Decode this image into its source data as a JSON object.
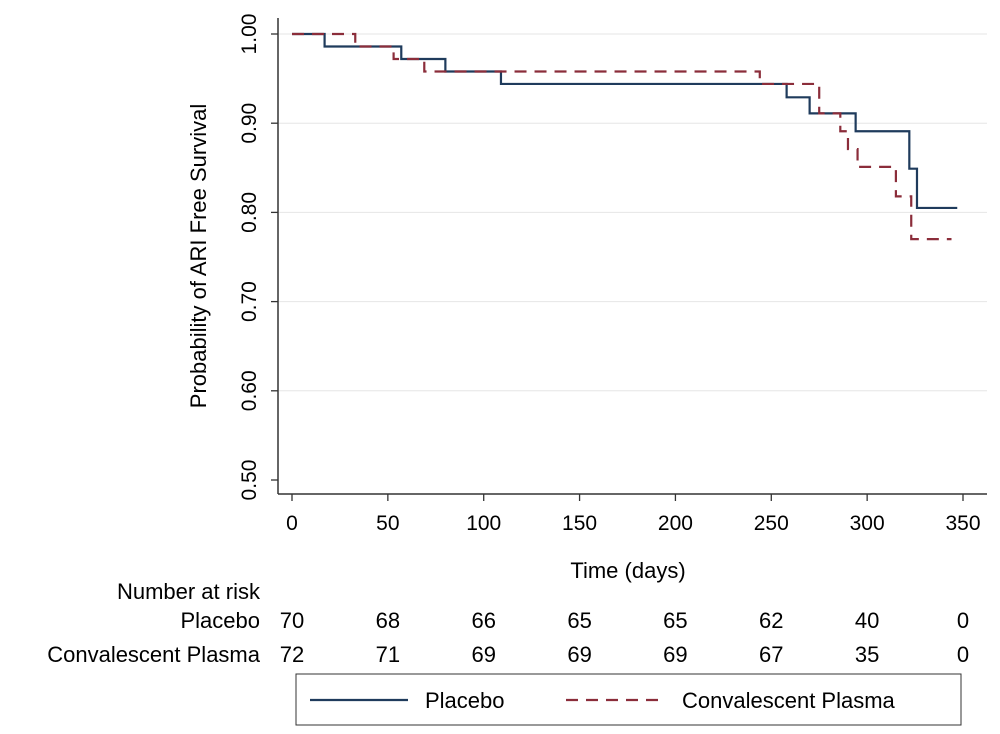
{
  "chart_data": {
    "type": "line",
    "title": "",
    "xlabel": "Time (days)",
    "ylabel": "Probability of ARI Free Survival",
    "xlim": [
      0,
      350
    ],
    "ylim": [
      0.5,
      1.0
    ],
    "x_ticks": [
      0,
      50,
      100,
      150,
      200,
      250,
      300,
      350
    ],
    "y_ticks": [
      0.5,
      0.6,
      0.7,
      0.8,
      0.9,
      1.0
    ],
    "y_tick_labels": [
      "0.50",
      "0.60",
      "0.70",
      "0.80",
      "0.90",
      "1.00"
    ],
    "grid": "horizontal",
    "legend_position": "bottom",
    "series": [
      {
        "name": "Placebo",
        "color": "#1f3b5c",
        "style": "solid",
        "step_points": [
          [
            0,
            1.0
          ],
          [
            17,
            0.986
          ],
          [
            57,
            0.972
          ],
          [
            80,
            0.958
          ],
          [
            109,
            0.944
          ],
          [
            258,
            0.929
          ],
          [
            270,
            0.911
          ],
          [
            294,
            0.891
          ],
          [
            322,
            0.849
          ],
          [
            326,
            0.805
          ],
          [
            347,
            0.805
          ]
        ]
      },
      {
        "name": "Convalescent Plasma",
        "color": "#8b2d3a",
        "style": "dashed",
        "step_points": [
          [
            0,
            1.0
          ],
          [
            33,
            0.986
          ],
          [
            53,
            0.972
          ],
          [
            69,
            0.958
          ],
          [
            244,
            0.944
          ],
          [
            275,
            0.911
          ],
          [
            286,
            0.891
          ],
          [
            290,
            0.871
          ],
          [
            295,
            0.851
          ],
          [
            315,
            0.818
          ],
          [
            323,
            0.77
          ],
          [
            344,
            0.77
          ]
        ]
      }
    ],
    "risk_table": {
      "header": "Number at risk",
      "times": [
        0,
        50,
        100,
        150,
        200,
        250,
        300,
        350
      ],
      "rows": [
        {
          "label": "Placebo",
          "values": [
            "70",
            "68",
            "66",
            "65",
            "65",
            "62",
            "40",
            "0"
          ]
        },
        {
          "label": "Convalescent Plasma",
          "values": [
            "72",
            "71",
            "69",
            "69",
            "69",
            "67",
            "35",
            "0"
          ]
        }
      ]
    }
  }
}
